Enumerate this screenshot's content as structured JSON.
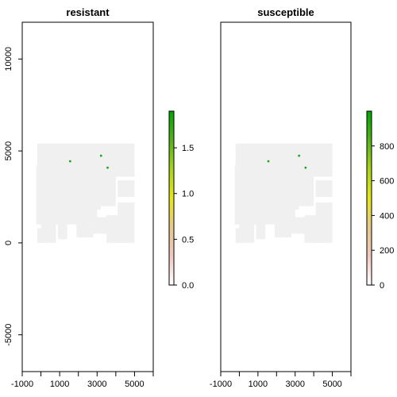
{
  "chart_data": [
    {
      "type": "heatmap",
      "title": "resistant",
      "xlabel": "",
      "ylabel": "",
      "xlim": [
        -1000,
        6000
      ],
      "ylim": [
        -7000,
        12000
      ],
      "x_ticks": [
        -1000,
        0,
        1000,
        2000,
        3000,
        4000,
        5000,
        6000
      ],
      "x_tick_labels": [
        "-1000",
        "",
        "1000",
        "",
        "3000",
        "",
        "5000",
        ""
      ],
      "y_ticks": [
        -5000,
        0,
        5000,
        10000
      ],
      "y_tick_labels": [
        "-5000",
        "0",
        "5000",
        "10000"
      ],
      "colorbar": {
        "min": 0,
        "max": 1.9,
        "ticks": [
          0.0,
          0.5,
          1.0,
          1.5
        ],
        "tick_labels": [
          "0.0",
          "0.5",
          "1.0",
          "1.5"
        ],
        "colors": [
          "#ffffff",
          "#f2c7c0",
          "#e6c98a",
          "#e6e619",
          "#a8d41a",
          "#54b31a",
          "#00a600"
        ]
      },
      "background_color": "#f0f0f0",
      "highlight_color": "#19a519",
      "points": [
        {
          "x": 1550,
          "y": 4450,
          "value": 1.9
        },
        {
          "x": 3200,
          "y": 4750,
          "value": 1.9
        },
        {
          "x": 3550,
          "y": 4100,
          "value": 1.9
        }
      ]
    },
    {
      "type": "heatmap",
      "title": "susceptible",
      "xlabel": "",
      "ylabel": "",
      "xlim": [
        -1000,
        6000
      ],
      "ylim": [
        -7000,
        12000
      ],
      "x_ticks": [
        -1000,
        0,
        1000,
        2000,
        3000,
        4000,
        5000,
        6000
      ],
      "x_tick_labels": [
        "-1000",
        "",
        "1000",
        "",
        "3000",
        "",
        "5000",
        ""
      ],
      "y_ticks": [],
      "y_tick_labels": [],
      "colorbar": {
        "min": 0,
        "max": 1000,
        "ticks": [
          0,
          200,
          400,
          600,
          800
        ],
        "tick_labels": [
          "0",
          "200",
          "400",
          "600",
          "800"
        ],
        "colors": [
          "#ffffff",
          "#f2c7c0",
          "#e6c98a",
          "#e6e619",
          "#a8d41a",
          "#54b31a",
          "#00a600"
        ]
      },
      "background_color": "#f0f0f0",
      "highlight_color": "#19a519",
      "points": [
        {
          "x": 1550,
          "y": 4450,
          "value": 1000
        },
        {
          "x": 3200,
          "y": 4750,
          "value": 1000
        },
        {
          "x": 3550,
          "y": 4100,
          "value": 1000
        }
      ]
    }
  ]
}
